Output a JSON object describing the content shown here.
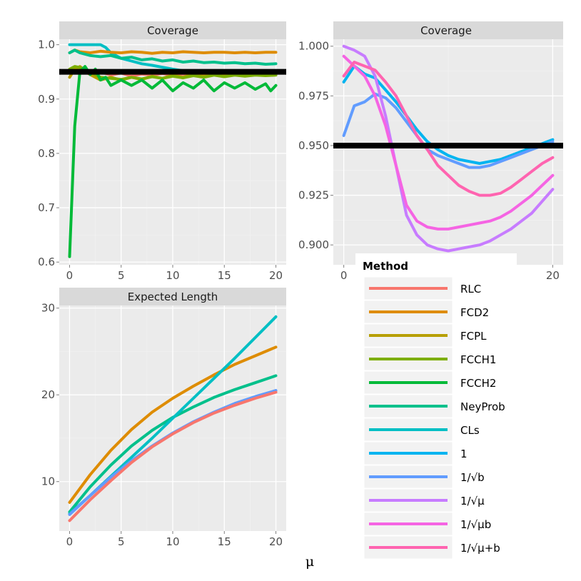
{
  "figure": {
    "xlabel": "μ"
  },
  "colors": {
    "RLC": "#F8766D",
    "FCD2": "#DE8C00",
    "FCPL": "#B79F00",
    "FCCH1": "#7CAE00",
    "FCCH2": "#00BA38",
    "NeyProb": "#00C08B",
    "CLs": "#00BFC4",
    "1": "#00B4F0",
    "1/sqrt(b)": "#619CFF",
    "1/sqrt(mu)": "#C77CFF",
    "1/sqrt(mu b)": "#F564E3",
    "1/sqrt(mu+b)": "#FF64B0",
    "reference_line": "#000000",
    "panel_bg": "#EBEBEB",
    "strip_bg": "#D9D9D9"
  },
  "legend": {
    "title": "Method",
    "items": [
      {
        "key": "RLC",
        "label": "RLC"
      },
      {
        "key": "FCD2",
        "label": "FCD2"
      },
      {
        "key": "FCPL",
        "label": "FCPL"
      },
      {
        "key": "FCCH1",
        "label": "FCCH1"
      },
      {
        "key": "FCCH2",
        "label": "FCCH2"
      },
      {
        "key": "NeyProb",
        "label": "NeyProb"
      },
      {
        "key": "CLs",
        "label": "CLs"
      },
      {
        "key": "1",
        "label": "1"
      },
      {
        "key": "1/sqrt(b)",
        "label": "1/√b"
      },
      {
        "key": "1/sqrt(mu)",
        "label": "1/√μ"
      },
      {
        "key": "1/sqrt(mu b)",
        "label": "1/√μb"
      },
      {
        "key": "1/sqrt(mu+b)",
        "label": "1/√μ+b"
      }
    ]
  },
  "chart_data": [
    {
      "id": "coverage-left",
      "type": "line",
      "title": "Coverage",
      "xlabel": "μ",
      "ylabel": "",
      "xlim": [
        -1,
        21
      ],
      "ylim": [
        0.595,
        1.01
      ],
      "xticks": [
        0,
        5,
        10,
        15,
        20
      ],
      "yticks": [
        0.6,
        0.7,
        0.8,
        0.9,
        1.0
      ],
      "ytick_labels": [
        "0.6",
        "0.7",
        "0.8",
        "0.9",
        "1.0"
      ],
      "reference_line": 0.95,
      "series": [
        {
          "name": "CLs",
          "x": [
            0,
            1,
            2,
            3,
            3.5,
            4,
            5,
            6,
            7,
            8,
            10,
            11,
            12
          ],
          "y": [
            1.0,
            1.0,
            1.0,
            1.0,
            0.995,
            0.985,
            0.975,
            0.97,
            0.965,
            0.962,
            0.955,
            0.952,
            0.95
          ]
        },
        {
          "name": "FCD2",
          "x": [
            0,
            0.5,
            1,
            2,
            3,
            4,
            5,
            6,
            7,
            8,
            9,
            10,
            11,
            12,
            13,
            14,
            15,
            16,
            17,
            18,
            19,
            20
          ],
          "y": [
            0.985,
            0.99,
            0.987,
            0.985,
            0.988,
            0.986,
            0.985,
            0.987,
            0.986,
            0.984,
            0.986,
            0.985,
            0.987,
            0.986,
            0.985,
            0.986,
            0.986,
            0.985,
            0.986,
            0.985,
            0.986,
            0.986
          ]
        },
        {
          "name": "NeyProb",
          "x": [
            0,
            0.5,
            1,
            2,
            3,
            4,
            5,
            6,
            7,
            8,
            9,
            10,
            11,
            12,
            13,
            14,
            15,
            16,
            17,
            18,
            19,
            20
          ],
          "y": [
            0.985,
            0.99,
            0.985,
            0.98,
            0.978,
            0.98,
            0.975,
            0.977,
            0.972,
            0.974,
            0.97,
            0.972,
            0.968,
            0.97,
            0.967,
            0.968,
            0.966,
            0.967,
            0.965,
            0.966,
            0.964,
            0.965
          ]
        },
        {
          "name": "RLC",
          "x": [
            0,
            1,
            2,
            3,
            4,
            5,
            6,
            7,
            8,
            9,
            10,
            11,
            12,
            13,
            14,
            15,
            16,
            17,
            18,
            19,
            20
          ],
          "y": [
            0.95,
            0.955,
            0.945,
            0.95,
            0.944,
            0.948,
            0.942,
            0.946,
            0.944,
            0.947,
            0.944,
            0.946,
            0.944,
            0.947,
            0.945,
            0.946,
            0.944,
            0.947,
            0.945,
            0.946,
            0.945
          ]
        },
        {
          "name": "FCPL",
          "x": [
            0,
            0.5,
            1,
            2,
            3,
            4,
            5,
            6,
            7,
            8,
            9,
            10,
            11,
            12,
            13,
            14,
            15,
            16,
            17,
            18,
            19,
            20
          ],
          "y": [
            0.94,
            0.955,
            0.96,
            0.945,
            0.935,
            0.94,
            0.935,
            0.94,
            0.936,
            0.942,
            0.938,
            0.944,
            0.94,
            0.946,
            0.942,
            0.945,
            0.943,
            0.946,
            0.944,
            0.946,
            0.945,
            0.946
          ]
        },
        {
          "name": "FCCH1",
          "x": [
            0,
            0.5,
            1,
            2,
            3,
            4,
            5,
            6,
            7,
            8,
            9,
            10,
            11,
            12,
            13,
            14,
            15,
            16,
            17,
            18,
            19,
            20
          ],
          "y": [
            0.955,
            0.96,
            0.958,
            0.95,
            0.94,
            0.938,
            0.936,
            0.94,
            0.937,
            0.941,
            0.938,
            0.942,
            0.939,
            0.943,
            0.94,
            0.944,
            0.941,
            0.944,
            0.942,
            0.944,
            0.943,
            0.944
          ]
        },
        {
          "name": "FCCH2",
          "x": [
            0,
            0.5,
            1,
            1.5,
            2,
            2.5,
            3,
            3.5,
            4,
            5,
            6,
            7,
            8,
            9,
            10,
            11,
            12,
            13,
            14,
            15,
            16,
            17,
            18,
            19,
            19.5,
            20
          ],
          "y": [
            0.61,
            0.85,
            0.95,
            0.96,
            0.945,
            0.955,
            0.935,
            0.94,
            0.925,
            0.935,
            0.925,
            0.935,
            0.92,
            0.935,
            0.915,
            0.93,
            0.92,
            0.935,
            0.915,
            0.93,
            0.92,
            0.93,
            0.918,
            0.928,
            0.915,
            0.925
          ]
        }
      ]
    },
    {
      "id": "coverage-right",
      "type": "line",
      "title": "Coverage",
      "xlabel": "μ",
      "ylabel": "",
      "xlim": [
        -1,
        21
      ],
      "ylim": [
        0.89,
        1.0035
      ],
      "xticks": [
        0,
        20
      ],
      "yticks": [
        0.9,
        0.925,
        0.95,
        0.975,
        1.0
      ],
      "ytick_labels": [
        "0.900",
        "0.925",
        "0.950",
        "0.975",
        "1.000"
      ],
      "reference_line": 0.95,
      "series": [
        {
          "name": "1",
          "x": [
            0,
            1,
            2,
            3,
            4,
            5,
            6,
            7,
            8,
            9,
            10,
            11,
            12,
            13,
            14,
            15,
            16,
            17,
            18,
            19,
            20
          ],
          "y": [
            0.982,
            0.99,
            0.986,
            0.984,
            0.978,
            0.972,
            0.965,
            0.958,
            0.952,
            0.948,
            0.945,
            0.943,
            0.942,
            0.941,
            0.942,
            0.943,
            0.945,
            0.947,
            0.949,
            0.951,
            0.953
          ]
        },
        {
          "name": "1/sqrt(b)",
          "x": [
            0,
            1,
            2,
            3,
            4,
            5,
            6,
            7,
            8,
            9,
            10,
            11,
            12,
            13,
            14,
            15,
            16,
            17,
            18,
            19,
            20
          ],
          "y": [
            0.955,
            0.97,
            0.972,
            0.976,
            0.974,
            0.969,
            0.962,
            0.955,
            0.948,
            0.945,
            0.943,
            0.941,
            0.939,
            0.939,
            0.94,
            0.942,
            0.944,
            0.946,
            0.948,
            0.95,
            0.952
          ]
        },
        {
          "name": "1/sqrt(mu)",
          "x": [
            0,
            1,
            2,
            3,
            4,
            5,
            6,
            7,
            8,
            9,
            10,
            11,
            12,
            13,
            14,
            15,
            16,
            17,
            18,
            19,
            20
          ],
          "y": [
            1.0,
            0.998,
            0.995,
            0.985,
            0.965,
            0.94,
            0.915,
            0.905,
            0.9,
            0.898,
            0.897,
            0.898,
            0.899,
            0.9,
            0.902,
            0.905,
            0.908,
            0.912,
            0.916,
            0.922,
            0.928
          ]
        },
        {
          "name": "1/sqrt(mu b)",
          "x": [
            0,
            1,
            2,
            3,
            4,
            5,
            6,
            7,
            8,
            9,
            10,
            11,
            12,
            13,
            14,
            15,
            16,
            17,
            18,
            19,
            20
          ],
          "y": [
            0.995,
            0.99,
            0.985,
            0.975,
            0.96,
            0.94,
            0.92,
            0.912,
            0.909,
            0.908,
            0.908,
            0.909,
            0.91,
            0.911,
            0.912,
            0.914,
            0.917,
            0.921,
            0.925,
            0.93,
            0.935
          ]
        },
        {
          "name": "1/sqrt(mu+b)",
          "x": [
            0,
            1,
            2,
            3,
            4,
            5,
            6,
            7,
            8,
            9,
            10,
            11,
            12,
            13,
            14,
            15,
            16,
            17,
            18,
            19,
            20
          ],
          "y": [
            0.985,
            0.992,
            0.99,
            0.988,
            0.982,
            0.975,
            0.965,
            0.955,
            0.948,
            0.94,
            0.935,
            0.93,
            0.927,
            0.925,
            0.925,
            0.926,
            0.929,
            0.933,
            0.937,
            0.941,
            0.944
          ]
        }
      ]
    },
    {
      "id": "expected-length",
      "type": "line",
      "title": "Expected Length",
      "xlabel": "μ",
      "ylabel": "",
      "xlim": [
        -1,
        21
      ],
      "ylim": [
        4.3,
        30.3
      ],
      "xticks": [
        0,
        5,
        10,
        15,
        20
      ],
      "yticks": [
        10,
        20,
        30
      ],
      "ytick_labels": [
        "10",
        "20",
        "30"
      ],
      "series": [
        {
          "name": "FCD2",
          "x": [
            0,
            2,
            4,
            6,
            8,
            10,
            12,
            14,
            16,
            18,
            20
          ],
          "y": [
            7.6,
            10.8,
            13.6,
            16.0,
            18.0,
            19.6,
            21.0,
            22.3,
            23.5,
            24.5,
            25.5
          ]
        },
        {
          "name": "NeyProb",
          "x": [
            0,
            2,
            4,
            6,
            8,
            10,
            12,
            14,
            16,
            18,
            20
          ],
          "y": [
            6.5,
            9.4,
            11.9,
            14.1,
            15.9,
            17.4,
            18.6,
            19.7,
            20.6,
            21.4,
            22.2
          ]
        },
        {
          "name": "CLs",
          "x": [
            0,
            2,
            4,
            6,
            8,
            10,
            12,
            14,
            16,
            18,
            20
          ],
          "y": [
            6.3,
            8.4,
            10.6,
            12.8,
            15.0,
            17.3,
            19.6,
            21.9,
            24.2,
            26.6,
            29.0
          ]
        },
        {
          "name": "1/sqrt(b)",
          "x": [
            0,
            2,
            4,
            6,
            8,
            10,
            12,
            14,
            16,
            18,
            20
          ],
          "y": [
            6.2,
            8.4,
            10.5,
            12.4,
            14.1,
            15.6,
            16.9,
            18.0,
            19.0,
            19.8,
            20.5
          ]
        },
        {
          "name": "RLC",
          "x": [
            0,
            2,
            4,
            6,
            8,
            10,
            12,
            14,
            16,
            18,
            20
          ],
          "y": [
            5.5,
            7.9,
            10.1,
            12.2,
            14.0,
            15.5,
            16.8,
            17.9,
            18.8,
            19.6,
            20.3
          ]
        }
      ]
    }
  ]
}
